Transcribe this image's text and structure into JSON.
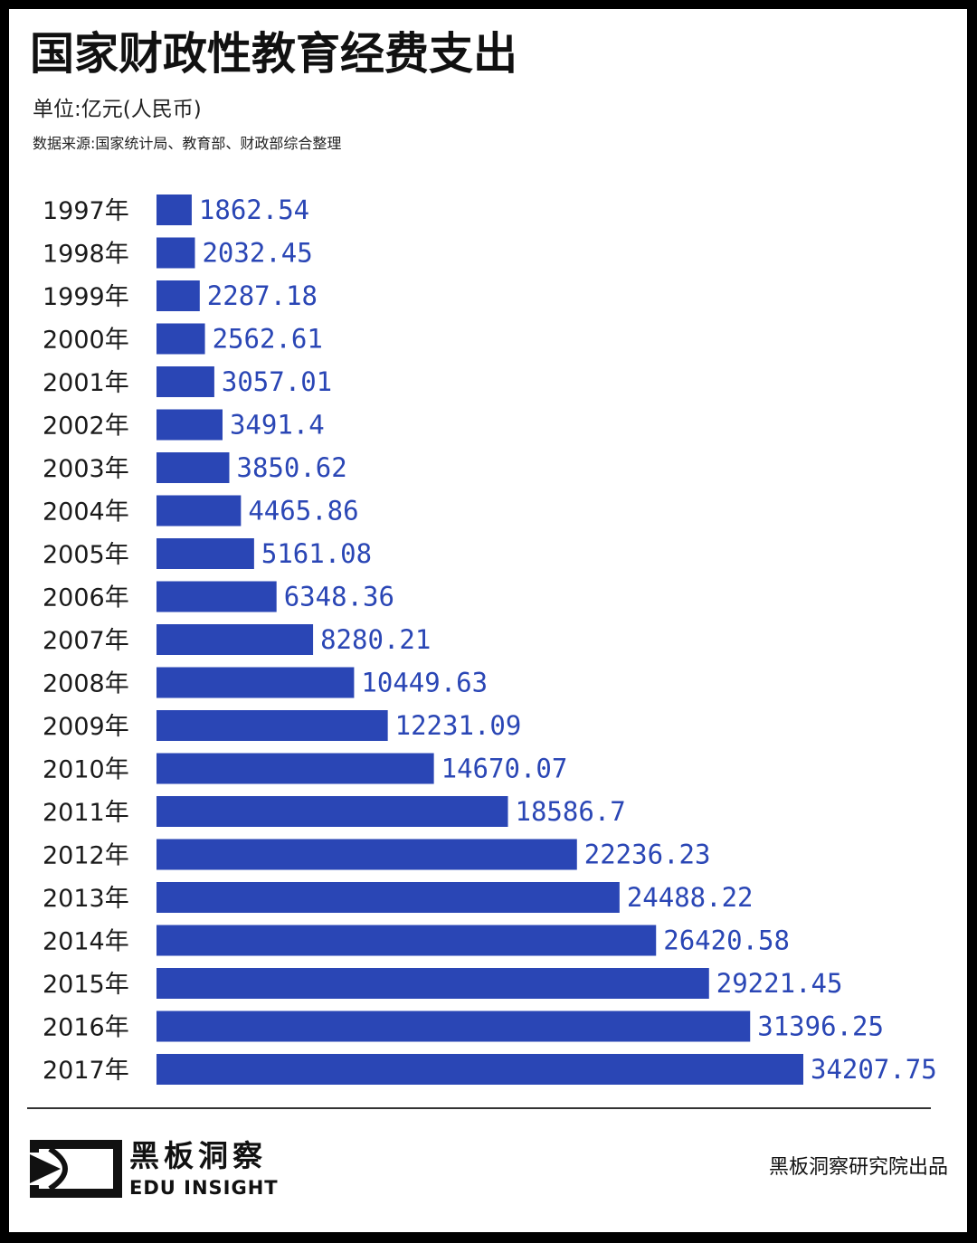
{
  "header": {
    "title": "国家财政性教育经费支出",
    "unit": "单位:亿元(人民币)",
    "source": "数据来源:国家统计局、教育部、财政部综合整理"
  },
  "chart_data": {
    "type": "bar",
    "orientation": "horizontal",
    "categories": [
      "1997年",
      "1998年",
      "1999年",
      "2000年",
      "2001年",
      "2002年",
      "2003年",
      "2004年",
      "2005年",
      "2006年",
      "2007年",
      "2008年",
      "2009年",
      "2010年",
      "2011年",
      "2012年",
      "2013年",
      "2014年",
      "2015年",
      "2016年",
      "2017年"
    ],
    "values": [
      1862.54,
      2032.45,
      2287.18,
      2562.61,
      3057.01,
      3491.4,
      3850.62,
      4465.86,
      5161.08,
      6348.36,
      8280.21,
      10449.63,
      12231.09,
      14670.07,
      18586.7,
      22236.23,
      24488.22,
      26420.58,
      29221.45,
      31396.25,
      34207.75
    ],
    "value_labels": [
      "1862.54",
      "2032.45",
      "2287.18",
      "2562.61",
      "3057.01",
      "3491.4",
      "3850.62",
      "4465.86",
      "5161.08",
      "6348.36",
      "8280.21",
      "10449.63",
      "12231.09",
      "14670.07",
      "18586.7",
      "22236.23",
      "24488.22",
      "26420.58",
      "29221.45",
      "31396.25",
      "34207.75"
    ],
    "bar_color": "#2a46b5",
    "label_color": "#2a46b5",
    "xlim": [
      0,
      34207.75
    ],
    "grid": false,
    "legend": "none"
  },
  "footer": {
    "brand_cn": "黑板洞察",
    "brand_en": "EDU INSIGHT",
    "credit": "黑板洞察研究院出品",
    "logo_icon": "eye-play-icon"
  }
}
